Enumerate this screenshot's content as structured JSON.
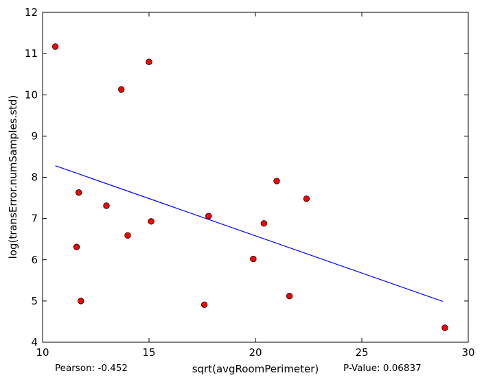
{
  "chart_data": {
    "type": "scatter",
    "xlabel": "sqrt(avgRoomPerimeter)",
    "ylabel": "log(transError.numSamples.std)",
    "xlim": [
      10,
      30
    ],
    "ylim": [
      4,
      12
    ],
    "x_ticks": [
      10,
      15,
      20,
      25,
      30
    ],
    "y_ticks": [
      4,
      5,
      6,
      7,
      8,
      9,
      10,
      11,
      12
    ],
    "grid": false,
    "colors": {
      "points": "#ff0000",
      "point_edge": "#000000",
      "fit_line": "#0000ff"
    },
    "points": [
      {
        "x": 10.6,
        "y": 11.17
      },
      {
        "x": 11.6,
        "y": 6.31
      },
      {
        "x": 11.7,
        "y": 7.63
      },
      {
        "x": 11.8,
        "y": 5.0
      },
      {
        "x": 13.0,
        "y": 7.31
      },
      {
        "x": 13.7,
        "y": 10.13
      },
      {
        "x": 14.0,
        "y": 6.59
      },
      {
        "x": 15.0,
        "y": 10.8
      },
      {
        "x": 15.1,
        "y": 6.93
      },
      {
        "x": 17.6,
        "y": 4.91
      },
      {
        "x": 17.8,
        "y": 7.06
      },
      {
        "x": 19.9,
        "y": 6.02
      },
      {
        "x": 20.4,
        "y": 6.88
      },
      {
        "x": 21.0,
        "y": 7.91
      },
      {
        "x": 21.6,
        "y": 5.12
      },
      {
        "x": 22.4,
        "y": 7.48
      },
      {
        "x": 28.9,
        "y": 4.35
      }
    ],
    "fit_line": {
      "x": [
        10.6,
        28.8
      ],
      "y": [
        8.28,
        4.99
      ]
    },
    "pearson_label": "Pearson: -0.452",
    "pvalue_label": "P-Value: 0.06837"
  }
}
